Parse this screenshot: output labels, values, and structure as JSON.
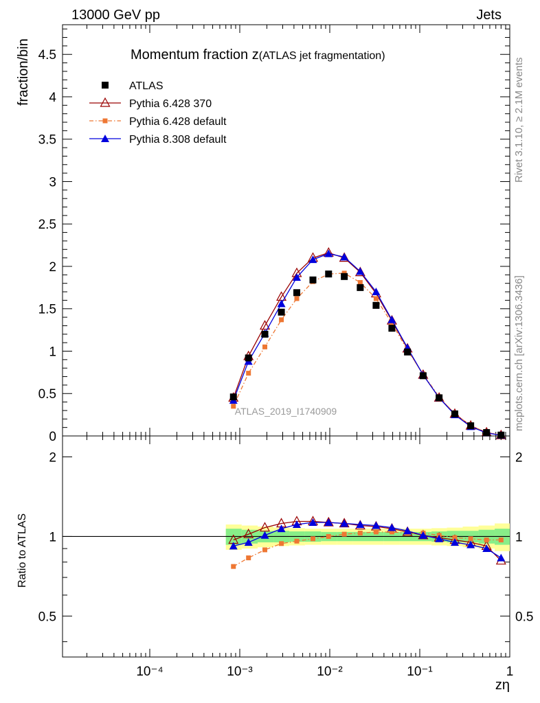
{
  "header": {
    "left": "13000 GeV pp",
    "right": "Jets"
  },
  "side_text": {
    "rivet": "Rivet 3.1.10, ≥ 2.1M events",
    "mcplots": "mcplots.cern.ch [arXiv:1306.3436]"
  },
  "chart_data": {
    "type": "scatter",
    "title_main": "Momentum fraction z",
    "title_sub": "(ATLAS jet fragmentation)",
    "watermark": "ATLAS_2019_I1740909",
    "xlabel": "zη",
    "xscale": "log",
    "xlim": [
      0.0001,
      1
    ],
    "x_tick_labels": [
      "10⁻⁴",
      "10⁻³",
      "10⁻²",
      "10⁻¹",
      "1"
    ],
    "main": {
      "ylabel": "fraction/bin",
      "ylim": [
        0,
        4.85
      ],
      "y_ticks": [
        0,
        0.5,
        1,
        1.5,
        2,
        2.5,
        3,
        3.5,
        4,
        4.5
      ],
      "y_tick_labels": [
        "0",
        "0.5",
        "1",
        "1.5",
        "2",
        "2.5",
        "3",
        "3.5",
        "4",
        "4.5"
      ]
    },
    "ratio": {
      "ylabel": "Ratio to ATLAS",
      "yscale": "log",
      "ylim": [
        0.35,
        2.4
      ],
      "y_ticks": [
        0.5,
        1,
        2
      ],
      "y_tick_labels": [
        "0.5",
        "1",
        "2"
      ]
    },
    "x": [
      0.00085,
      0.00125,
      0.0019,
      0.0029,
      0.0043,
      0.0065,
      0.0097,
      0.0145,
      0.0218,
      0.0327,
      0.049,
      0.073,
      0.109,
      0.164,
      0.245,
      0.368,
      0.552,
      0.8
    ],
    "bin_edges": [
      0.0007,
      0.00105,
      0.00158,
      0.00237,
      0.00355,
      0.0053,
      0.008,
      0.012,
      0.018,
      0.027,
      0.04,
      0.06,
      0.09,
      0.135,
      0.2,
      0.3,
      0.45,
      0.68,
      1.0
    ],
    "band_inner": [
      0.07,
      0.06,
      0.05,
      0.05,
      0.045,
      0.045,
      0.04,
      0.04,
      0.04,
      0.04,
      0.04,
      0.04,
      0.04,
      0.045,
      0.05,
      0.05,
      0.06,
      0.07
    ],
    "band_outer": [
      0.11,
      0.1,
      0.09,
      0.08,
      0.075,
      0.07,
      0.07,
      0.07,
      0.07,
      0.07,
      0.07,
      0.07,
      0.07,
      0.075,
      0.08,
      0.09,
      0.1,
      0.12
    ],
    "series": [
      {
        "name": "ATLAS",
        "color": "#000000",
        "marker": "square",
        "line": "none",
        "values": [
          0.46,
          0.92,
          1.2,
          1.46,
          1.69,
          1.84,
          1.91,
          1.88,
          1.75,
          1.54,
          1.27,
          0.99,
          0.71,
          0.45,
          0.26,
          0.12,
          0.04,
          0.01
        ]
      },
      {
        "name": "Pythia 6.428 370",
        "color": "#990000",
        "marker": "triangle-open",
        "line": "solid",
        "values": [
          0.45,
          0.94,
          1.3,
          1.64,
          1.92,
          2.1,
          2.16,
          2.1,
          1.93,
          1.68,
          1.36,
          1.03,
          0.72,
          0.45,
          0.26,
          0.12,
          0.04,
          0.008
        ],
        "ratio": [
          0.97,
          1.02,
          1.08,
          1.12,
          1.14,
          1.14,
          1.13,
          1.12,
          1.1,
          1.09,
          1.07,
          1.04,
          1.01,
          0.99,
          0.97,
          0.95,
          0.92,
          0.81
        ]
      },
      {
        "name": "Pythia 6.428 default",
        "color": "#ee7733",
        "marker": "square-small",
        "line": "dashdot",
        "values": [
          0.35,
          0.74,
          1.05,
          1.37,
          1.62,
          1.82,
          1.91,
          1.92,
          1.81,
          1.62,
          1.33,
          1.01,
          0.73,
          0.46,
          0.26,
          0.12,
          0.04,
          0.01
        ],
        "ratio": [
          0.77,
          0.83,
          0.89,
          0.94,
          0.96,
          0.98,
          1.0,
          1.02,
          1.03,
          1.04,
          1.04,
          1.03,
          1.03,
          1.01,
          0.99,
          0.98,
          0.97,
          0.97
        ]
      },
      {
        "name": "Pythia 8.308 default",
        "color": "#0000dd",
        "marker": "triangle",
        "line": "solid",
        "values": [
          0.42,
          0.88,
          1.21,
          1.56,
          1.87,
          2.08,
          2.15,
          2.11,
          1.94,
          1.7,
          1.37,
          1.04,
          0.72,
          0.45,
          0.25,
          0.11,
          0.035,
          0.008
        ],
        "ratio": [
          0.92,
          0.95,
          1.01,
          1.07,
          1.11,
          1.13,
          1.13,
          1.12,
          1.11,
          1.1,
          1.08,
          1.05,
          1.01,
          0.98,
          0.95,
          0.93,
          0.9,
          0.83
        ]
      }
    ],
    "legend_position": "top-left"
  }
}
